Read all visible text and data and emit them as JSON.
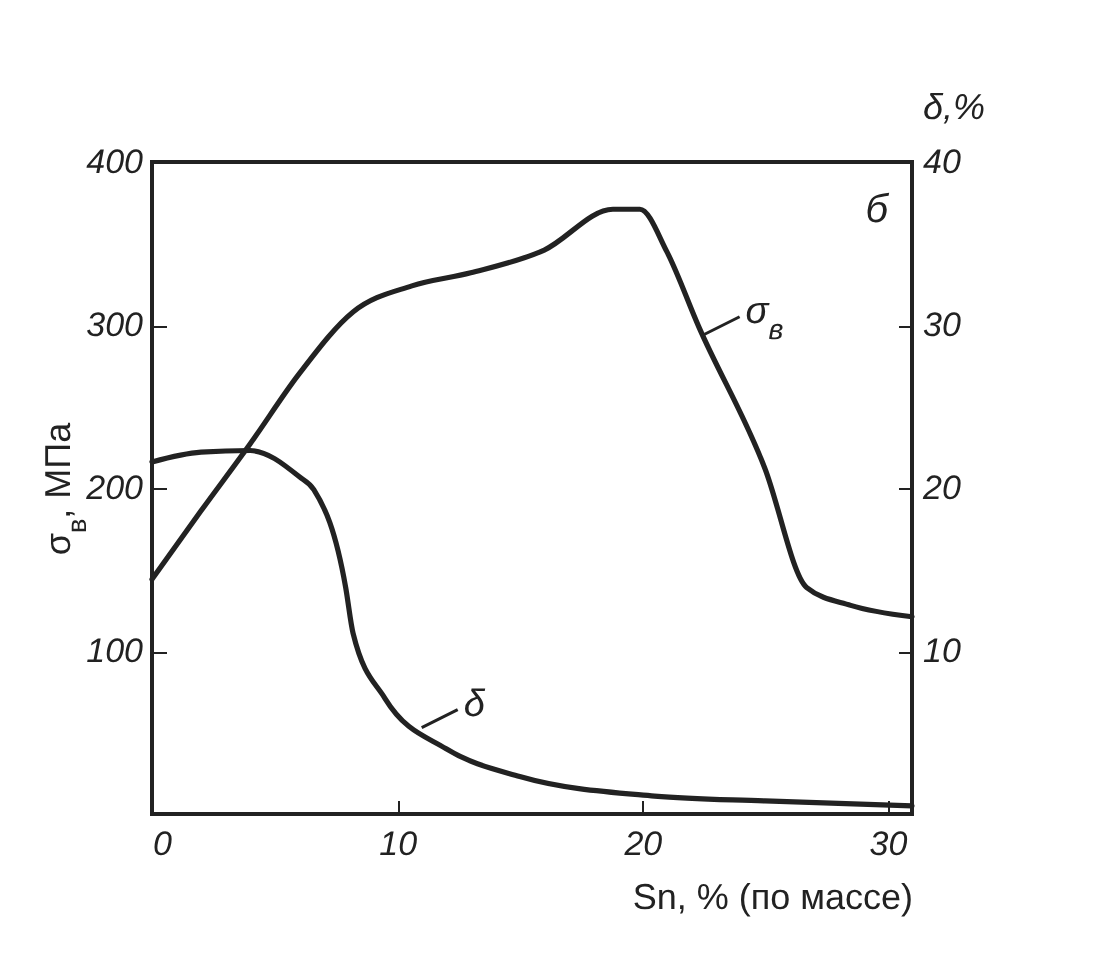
{
  "chart_data": {
    "type": "line",
    "xlabel": "Sn, % (по массе)",
    "ylabel": "σ$_{в}$, МПа",
    "y2label": "δ,%",
    "xlim": [
      0,
      31
    ],
    "xticks": [
      0,
      10,
      20,
      30
    ],
    "ylim": [
      0,
      400
    ],
    "yticks": [
      100,
      200,
      300,
      400
    ],
    "y2lim": [
      0,
      40
    ],
    "y2ticks": [
      10,
      20,
      30,
      40
    ],
    "series": [
      {
        "color": "#222222",
        "x": [
          0,
          2,
          4,
          6,
          8.2,
          10.6,
          13,
          16,
          18.8,
          19.9,
          21,
          22.3,
          25,
          26.7,
          28.5,
          31
        ],
        "values": [
          144,
          186,
          227,
          270,
          308,
          324,
          332,
          346,
          371,
          371,
          345,
          299,
          212,
          139,
          128,
          121
        ]
      },
      {
        "color": "#222222",
        "axis": "y2",
        "x": [
          0,
          2,
          4,
          6,
          6.6,
          7.9,
          8.2,
          9.5,
          12,
          15,
          20.5,
          25,
          31
        ],
        "values": [
          21.6,
          22.2,
          22.3,
          20.7,
          19.9,
          13.9,
          11.1,
          7.1,
          4.0,
          2.3,
          1.1,
          0.8,
          0.5
        ]
      }
    ],
    "annotations": [
      {
        "text": "σ$_{в}$",
        "x": 22.5,
        "y": 294
      },
      {
        "text": "δ",
        "x": 11,
        "y": 53
      },
      "б"
    ]
  }
}
